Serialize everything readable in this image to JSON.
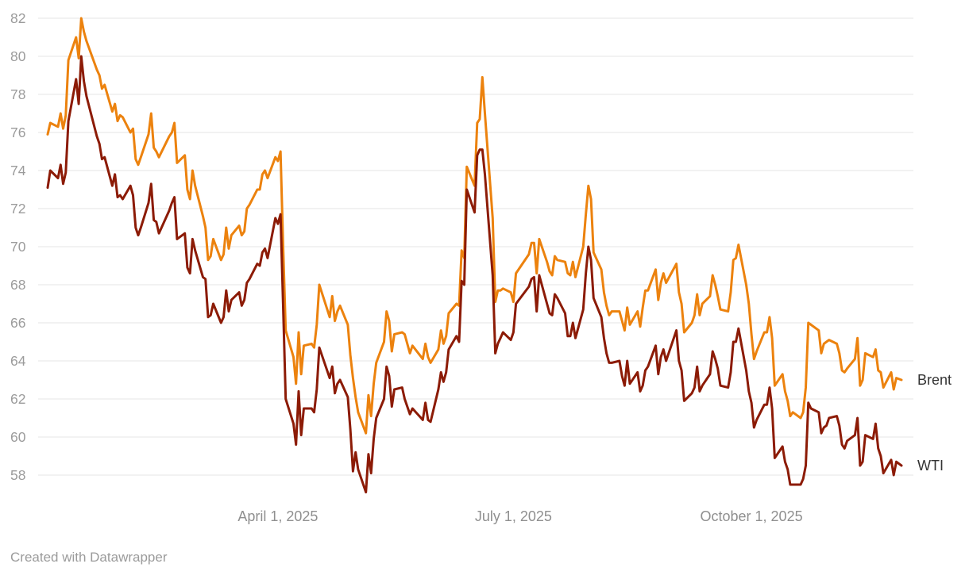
{
  "footer": {
    "attribution": "Created with Datawrapper"
  },
  "colors": {
    "brent_line": "#EC820E",
    "wti_line": "#8C1B06",
    "gridline": "#e4e4e4",
    "axis_text": "#9b9b9b",
    "x_axis_text": "#8f8f8f",
    "series_label_text": "#333333",
    "background": "#ffffff"
  },
  "chart_data": {
    "type": "line",
    "title": "",
    "xlabel": "",
    "ylabel": "",
    "grid": true,
    "legend_position": "right-end-of-line-labels",
    "x_axis": {
      "range": [
        "2025-01-02",
        "2025-11-28"
      ],
      "tick_dates": [
        "2025-04-01",
        "2025-07-01",
        "2025-10-01"
      ],
      "tick_labels": [
        "April 1, 2025",
        "July 1, 2025",
        "October 1, 2025"
      ]
    },
    "y_axis": {
      "ticks": [
        58,
        60,
        62,
        64,
        66,
        68,
        70,
        72,
        74,
        76,
        78,
        80,
        82
      ],
      "range": [
        58,
        82
      ]
    },
    "dates": [
      "2025-01-02",
      "2025-01-03",
      "2025-01-06",
      "2025-01-07",
      "2025-01-08",
      "2025-01-09",
      "2025-01-10",
      "2025-01-13",
      "2025-01-14",
      "2025-01-15",
      "2025-01-16",
      "2025-01-17",
      "2025-01-21",
      "2025-01-22",
      "2025-01-23",
      "2025-01-24",
      "2025-01-27",
      "2025-01-28",
      "2025-01-29",
      "2025-01-30",
      "2025-01-31",
      "2025-02-03",
      "2025-02-04",
      "2025-02-05",
      "2025-02-06",
      "2025-02-07",
      "2025-02-10",
      "2025-02-11",
      "2025-02-12",
      "2025-02-13",
      "2025-02-14",
      "2025-02-18",
      "2025-02-19",
      "2025-02-20",
      "2025-02-21",
      "2025-02-24",
      "2025-02-25",
      "2025-02-26",
      "2025-02-27",
      "2025-02-28",
      "2025-03-03",
      "2025-03-04",
      "2025-03-05",
      "2025-03-06",
      "2025-03-07",
      "2025-03-10",
      "2025-03-11",
      "2025-03-12",
      "2025-03-13",
      "2025-03-14",
      "2025-03-17",
      "2025-03-18",
      "2025-03-19",
      "2025-03-20",
      "2025-03-21",
      "2025-03-24",
      "2025-03-25",
      "2025-03-26",
      "2025-03-27",
      "2025-03-28",
      "2025-03-31",
      "2025-04-01",
      "2025-04-02",
      "2025-04-03",
      "2025-04-04",
      "2025-04-07",
      "2025-04-08",
      "2025-04-09",
      "2025-04-10",
      "2025-04-11",
      "2025-04-14",
      "2025-04-15",
      "2025-04-16",
      "2025-04-17",
      "2025-04-21",
      "2025-04-22",
      "2025-04-23",
      "2025-04-24",
      "2025-04-25",
      "2025-04-28",
      "2025-04-29",
      "2025-04-30",
      "2025-05-01",
      "2025-05-02",
      "2025-05-05",
      "2025-05-06",
      "2025-05-07",
      "2025-05-08",
      "2025-05-09",
      "2025-05-12",
      "2025-05-13",
      "2025-05-14",
      "2025-05-15",
      "2025-05-16",
      "2025-05-19",
      "2025-05-20",
      "2025-05-21",
      "2025-05-22",
      "2025-05-23",
      "2025-05-27",
      "2025-05-28",
      "2025-05-29",
      "2025-05-30",
      "2025-06-02",
      "2025-06-03",
      "2025-06-04",
      "2025-06-05",
      "2025-06-06",
      "2025-06-09",
      "2025-06-10",
      "2025-06-11",
      "2025-06-12",
      "2025-06-13",
      "2025-06-16",
      "2025-06-17",
      "2025-06-18",
      "2025-06-19",
      "2025-06-20",
      "2025-06-23",
      "2025-06-24",
      "2025-06-25",
      "2025-06-26",
      "2025-06-27",
      "2025-06-30",
      "2025-07-01",
      "2025-07-02",
      "2025-07-07",
      "2025-07-08",
      "2025-07-09",
      "2025-07-10",
      "2025-07-11",
      "2025-07-14",
      "2025-07-15",
      "2025-07-16",
      "2025-07-17",
      "2025-07-18",
      "2025-07-21",
      "2025-07-22",
      "2025-07-23",
      "2025-07-24",
      "2025-07-25",
      "2025-07-28",
      "2025-07-29",
      "2025-07-30",
      "2025-07-31",
      "2025-08-01",
      "2025-08-04",
      "2025-08-05",
      "2025-08-06",
      "2025-08-07",
      "2025-08-08",
      "2025-08-11",
      "2025-08-12",
      "2025-08-13",
      "2025-08-14",
      "2025-08-15",
      "2025-08-18",
      "2025-08-19",
      "2025-08-20",
      "2025-08-21",
      "2025-08-22",
      "2025-08-25",
      "2025-08-26",
      "2025-08-27",
      "2025-08-28",
      "2025-08-29",
      "2025-09-02",
      "2025-09-03",
      "2025-09-04",
      "2025-09-05",
      "2025-09-08",
      "2025-09-09",
      "2025-09-10",
      "2025-09-11",
      "2025-09-12",
      "2025-09-15",
      "2025-09-16",
      "2025-09-17",
      "2025-09-18",
      "2025-09-19",
      "2025-09-22",
      "2025-09-23",
      "2025-09-24",
      "2025-09-25",
      "2025-09-26",
      "2025-09-29",
      "2025-09-30",
      "2025-10-01",
      "2025-10-02",
      "2025-10-03",
      "2025-10-06",
      "2025-10-07",
      "2025-10-08",
      "2025-10-09",
      "2025-10-10",
      "2025-10-13",
      "2025-10-14",
      "2025-10-15",
      "2025-10-16",
      "2025-10-17",
      "2025-10-20",
      "2025-10-21",
      "2025-10-22",
      "2025-10-23",
      "2025-10-24",
      "2025-10-27",
      "2025-10-28",
      "2025-10-29",
      "2025-10-30",
      "2025-10-31",
      "2025-11-03",
      "2025-11-04",
      "2025-11-05",
      "2025-11-06",
      "2025-11-07",
      "2025-11-10",
      "2025-11-11",
      "2025-11-12",
      "2025-11-13",
      "2025-11-14",
      "2025-11-17",
      "2025-11-18",
      "2025-11-19",
      "2025-11-20",
      "2025-11-21",
      "2025-11-24",
      "2025-11-25",
      "2025-11-26",
      "2025-11-28"
    ],
    "series": [
      {
        "name": "Brent",
        "color": "#EC820E",
        "values": [
          75.9,
          76.5,
          76.3,
          77.0,
          76.2,
          76.9,
          79.8,
          81.0,
          79.9,
          82.0,
          81.3,
          80.8,
          79.3,
          79.0,
          78.3,
          78.5,
          77.1,
          77.5,
          76.6,
          76.9,
          76.8,
          76.0,
          76.2,
          74.6,
          74.3,
          74.7,
          75.9,
          77.0,
          75.2,
          75.0,
          74.7,
          75.8,
          76.0,
          76.5,
          74.4,
          74.8,
          73.0,
          72.5,
          74.0,
          73.2,
          71.6,
          71.0,
          69.3,
          69.5,
          70.4,
          69.3,
          69.6,
          71.0,
          69.9,
          70.6,
          71.1,
          70.6,
          70.8,
          72.0,
          72.2,
          73.0,
          73.0,
          73.8,
          74.0,
          73.6,
          74.7,
          74.5,
          75.0,
          70.1,
          65.6,
          64.2,
          62.8,
          65.5,
          63.3,
          64.8,
          64.9,
          64.7,
          65.9,
          68.0,
          66.3,
          67.4,
          66.1,
          66.6,
          66.9,
          65.9,
          64.3,
          63.1,
          62.1,
          61.3,
          60.2,
          62.2,
          61.1,
          62.8,
          63.9,
          65.0,
          66.6,
          66.1,
          64.5,
          65.4,
          65.5,
          65.4,
          64.9,
          64.4,
          64.8,
          64.1,
          64.9,
          64.2,
          63.9,
          64.6,
          65.6,
          64.9,
          65.3,
          66.5,
          67.0,
          66.9,
          69.8,
          69.4,
          74.2,
          73.2,
          76.5,
          76.7,
          78.9,
          77.0,
          71.5,
          67.1,
          67.7,
          67.7,
          67.8,
          67.6,
          67.1,
          68.6,
          69.6,
          70.2,
          70.2,
          68.6,
          70.4,
          69.2,
          68.7,
          68.5,
          69.5,
          69.3,
          69.2,
          68.6,
          68.5,
          69.2,
          68.4,
          70.0,
          71.7,
          73.2,
          72.5,
          69.7,
          68.8,
          67.6,
          66.9,
          66.4,
          66.6,
          66.6,
          66.1,
          65.6,
          66.8,
          65.9,
          66.6,
          65.8,
          66.8,
          67.7,
          67.7,
          68.8,
          67.2,
          68.1,
          68.6,
          68.1,
          69.1,
          67.6,
          67.0,
          65.5,
          66.0,
          66.4,
          67.5,
          66.4,
          67.0,
          67.4,
          68.5,
          68.0,
          67.4,
          66.7,
          66.6,
          67.6,
          69.3,
          69.4,
          70.1,
          68.0,
          67.0,
          65.4,
          64.1,
          64.5,
          65.5,
          65.5,
          66.3,
          65.2,
          62.7,
          63.3,
          62.4,
          61.9,
          61.1,
          61.3,
          61.0,
          61.3,
          62.6,
          66.0,
          65.9,
          65.6,
          64.4,
          64.9,
          65.0,
          65.1,
          64.9,
          64.4,
          63.5,
          63.4,
          63.6,
          64.1,
          65.2,
          62.7,
          63.0,
          64.4,
          64.2,
          64.6,
          63.5,
          63.4,
          62.6,
          63.4,
          62.5,
          63.1,
          63.0
        ]
      },
      {
        "name": "WTI",
        "color": "#8C1B06",
        "values": [
          73.1,
          74.0,
          73.6,
          74.3,
          73.3,
          73.9,
          76.6,
          78.8,
          77.5,
          80.0,
          78.7,
          77.9,
          75.8,
          75.4,
          74.6,
          74.7,
          73.2,
          73.8,
          72.6,
          72.7,
          72.5,
          73.2,
          72.7,
          71.0,
          70.6,
          71.0,
          72.3,
          73.3,
          71.4,
          71.3,
          70.7,
          71.9,
          72.3,
          72.6,
          70.4,
          70.7,
          68.9,
          68.6,
          70.4,
          69.8,
          68.4,
          68.3,
          66.3,
          66.4,
          67.0,
          66.0,
          66.3,
          67.7,
          66.6,
          67.2,
          67.6,
          66.9,
          67.2,
          68.1,
          68.3,
          69.1,
          69.0,
          69.7,
          69.9,
          69.4,
          71.5,
          71.2,
          71.7,
          67.0,
          62.0,
          60.7,
          59.6,
          62.4,
          60.1,
          61.5,
          61.5,
          61.3,
          62.5,
          64.7,
          63.1,
          63.7,
          62.3,
          62.8,
          63.0,
          62.1,
          60.4,
          58.2,
          59.2,
          58.3,
          57.1,
          59.1,
          58.1,
          59.9,
          61.0,
          62.0,
          63.7,
          63.2,
          61.6,
          62.5,
          62.6,
          62.0,
          61.6,
          61.2,
          61.5,
          60.9,
          61.8,
          60.9,
          60.8,
          62.5,
          63.4,
          62.9,
          63.4,
          64.6,
          65.3,
          65.0,
          68.2,
          68.0,
          73.0,
          71.8,
          74.8,
          75.1,
          75.1,
          73.8,
          68.5,
          64.4,
          64.9,
          65.2,
          65.5,
          65.1,
          65.5,
          67.0,
          67.9,
          68.3,
          68.4,
          66.6,
          68.5,
          67.0,
          66.5,
          66.4,
          67.5,
          67.3,
          66.5,
          65.3,
          65.3,
          66.0,
          65.2,
          66.7,
          68.6,
          70.0,
          69.3,
          67.3,
          66.3,
          65.2,
          64.4,
          63.9,
          63.9,
          64.0,
          63.2,
          62.7,
          64.0,
          62.8,
          63.4,
          62.4,
          62.7,
          63.5,
          63.7,
          64.8,
          63.3,
          64.2,
          64.6,
          64.0,
          65.6,
          64.0,
          63.5,
          61.9,
          62.3,
          62.6,
          63.7,
          62.4,
          62.7,
          63.3,
          64.5,
          64.1,
          63.6,
          62.7,
          62.6,
          63.4,
          65.0,
          65.0,
          65.7,
          63.5,
          62.4,
          61.8,
          60.5,
          60.9,
          61.7,
          61.7,
          62.6,
          61.5,
          58.9,
          59.5,
          58.7,
          58.3,
          57.5,
          57.5,
          57.5,
          57.8,
          58.5,
          61.8,
          61.5,
          61.3,
          60.2,
          60.5,
          60.6,
          61.0,
          61.1,
          60.6,
          59.6,
          59.4,
          59.8,
          60.1,
          61.0,
          58.5,
          58.7,
          60.1,
          59.9,
          60.7,
          59.4,
          59.0,
          58.1,
          58.8,
          58.0,
          58.7,
          58.5
        ]
      }
    ]
  }
}
